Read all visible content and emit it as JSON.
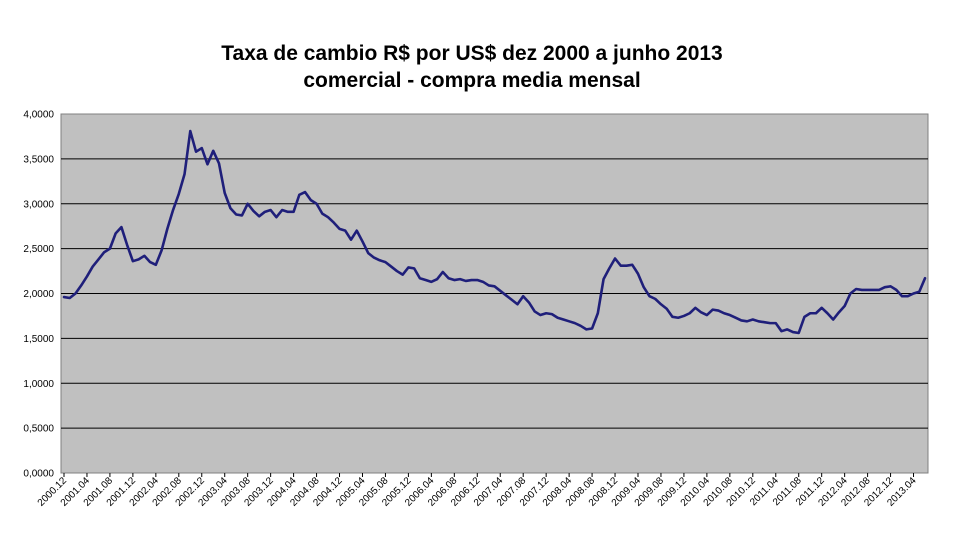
{
  "chart_data": {
    "type": "line",
    "title": "Taxa de cambio R$ por US$ dez 2000 a junho 2013",
    "subtitle": "comercial - compra media mensal",
    "xlabel": "",
    "ylabel": "",
    "ylim": [
      0,
      4
    ],
    "grid": true,
    "legend": "none",
    "colors": {
      "line": "#1f1f7a",
      "plot_bg": "#c0c0c0",
      "grid": "#000000"
    },
    "y_ticks": [
      "0,0000",
      "0,5000",
      "1,0000",
      "1,5000",
      "2,0000",
      "2,5000",
      "3,0000",
      "3,5000",
      "4,0000"
    ],
    "x_ticks": [
      "2000.12",
      "2001.04",
      "2001.08",
      "2001.12",
      "2002.04",
      "2002.08",
      "2002.12",
      "2003.04",
      "2003.08",
      "2003.12",
      "2004.04",
      "2004.08",
      "2004.12",
      "2005.04",
      "2005.08",
      "2005.12",
      "2006.04",
      "2006.08",
      "2006.12",
      "2007.04",
      "2007.08",
      "2007.12",
      "2008.04",
      "2008.08",
      "2008.12",
      "2009.04",
      "2009.08",
      "2009.12",
      "2010.04",
      "2010.08",
      "2010.12",
      "2011.04",
      "2011.08",
      "2011.12",
      "2012.04",
      "2012.08",
      "2012.12",
      "2013.04"
    ],
    "series": [
      {
        "x": [
          "2000.12",
          "2001.01",
          "2001.02",
          "2001.03",
          "2001.04",
          "2001.05",
          "2001.06",
          "2001.07",
          "2001.08",
          "2001.09",
          "2001.10",
          "2001.11",
          "2001.12",
          "2002.01",
          "2002.02",
          "2002.03",
          "2002.04",
          "2002.05",
          "2002.06",
          "2002.07",
          "2002.08",
          "2002.09",
          "2002.10",
          "2002.11",
          "2002.12",
          "2003.01",
          "2003.02",
          "2003.03",
          "2003.04",
          "2003.05",
          "2003.06",
          "2003.07",
          "2003.08",
          "2003.09",
          "2003.10",
          "2003.11",
          "2003.12",
          "2004.01",
          "2004.02",
          "2004.03",
          "2004.04",
          "2004.05",
          "2004.06",
          "2004.07",
          "2004.08",
          "2004.09",
          "2004.10",
          "2004.11",
          "2004.12",
          "2005.01",
          "2005.02",
          "2005.03",
          "2005.04",
          "2005.05",
          "2005.06",
          "2005.07",
          "2005.08",
          "2005.09",
          "2005.10",
          "2005.11",
          "2005.12",
          "2006.01",
          "2006.02",
          "2006.03",
          "2006.04",
          "2006.05",
          "2006.06",
          "2006.07",
          "2006.08",
          "2006.09",
          "2006.10",
          "2006.11",
          "2006.12",
          "2007.01",
          "2007.02",
          "2007.03",
          "2007.04",
          "2007.05",
          "2007.06",
          "2007.07",
          "2007.08",
          "2007.09",
          "2007.10",
          "2007.11",
          "2007.12",
          "2008.01",
          "2008.02",
          "2008.03",
          "2008.04",
          "2008.05",
          "2008.06",
          "2008.07",
          "2008.08",
          "2008.09",
          "2008.10",
          "2008.11",
          "2008.12",
          "2009.01",
          "2009.02",
          "2009.03",
          "2009.04",
          "2009.05",
          "2009.06",
          "2009.07",
          "2009.08",
          "2009.09",
          "2009.10",
          "2009.11",
          "2009.12",
          "2010.01",
          "2010.02",
          "2010.03",
          "2010.04",
          "2010.05",
          "2010.06",
          "2010.07",
          "2010.08",
          "2010.09",
          "2010.10",
          "2010.11",
          "2010.12",
          "2011.01",
          "2011.02",
          "2011.03",
          "2011.04",
          "2011.05",
          "2011.06",
          "2011.07",
          "2011.08",
          "2011.09",
          "2011.10",
          "2011.11",
          "2011.12",
          "2012.01",
          "2012.02",
          "2012.03",
          "2012.04",
          "2012.05",
          "2012.06",
          "2012.07",
          "2012.08",
          "2012.09",
          "2012.10",
          "2012.11",
          "2012.12",
          "2013.01",
          "2013.02",
          "2013.03",
          "2013.04",
          "2013.05",
          "2013.06"
        ],
        "values": [
          1.96,
          1.95,
          2.0,
          2.09,
          2.19,
          2.3,
          2.38,
          2.46,
          2.5,
          2.67,
          2.74,
          2.54,
          2.36,
          2.38,
          2.42,
          2.35,
          2.32,
          2.48,
          2.72,
          2.93,
          3.11,
          3.33,
          3.81,
          3.58,
          3.62,
          3.44,
          3.59,
          3.45,
          3.12,
          2.95,
          2.88,
          2.87,
          3.0,
          2.92,
          2.86,
          2.91,
          2.93,
          2.85,
          2.93,
          2.91,
          2.91,
          3.1,
          3.13,
          3.04,
          3.0,
          2.89,
          2.85,
          2.79,
          2.72,
          2.7,
          2.6,
          2.7,
          2.58,
          2.45,
          2.4,
          2.37,
          2.35,
          2.3,
          2.25,
          2.21,
          2.29,
          2.28,
          2.17,
          2.15,
          2.13,
          2.16,
          2.24,
          2.17,
          2.15,
          2.16,
          2.14,
          2.15,
          2.15,
          2.13,
          2.09,
          2.08,
          2.03,
          1.98,
          1.93,
          1.88,
          1.97,
          1.9,
          1.8,
          1.76,
          1.78,
          1.77,
          1.73,
          1.71,
          1.69,
          1.67,
          1.64,
          1.6,
          1.61,
          1.78,
          2.16,
          2.28,
          2.39,
          2.31,
          2.31,
          2.32,
          2.22,
          2.07,
          1.97,
          1.94,
          1.88,
          1.83,
          1.74,
          1.73,
          1.75,
          1.78,
          1.84,
          1.79,
          1.76,
          1.82,
          1.81,
          1.78,
          1.76,
          1.73,
          1.7,
          1.69,
          1.71,
          1.69,
          1.68,
          1.67,
          1.67,
          1.58,
          1.6,
          1.57,
          1.56,
          1.74,
          1.78,
          1.78,
          1.84,
          1.78,
          1.71,
          1.79,
          1.86,
          2.0,
          2.05,
          2.04,
          2.04,
          2.04,
          2.04,
          2.07,
          2.08,
          2.04,
          1.97,
          1.97,
          2.0,
          2.02,
          2.17
        ]
      }
    ]
  }
}
